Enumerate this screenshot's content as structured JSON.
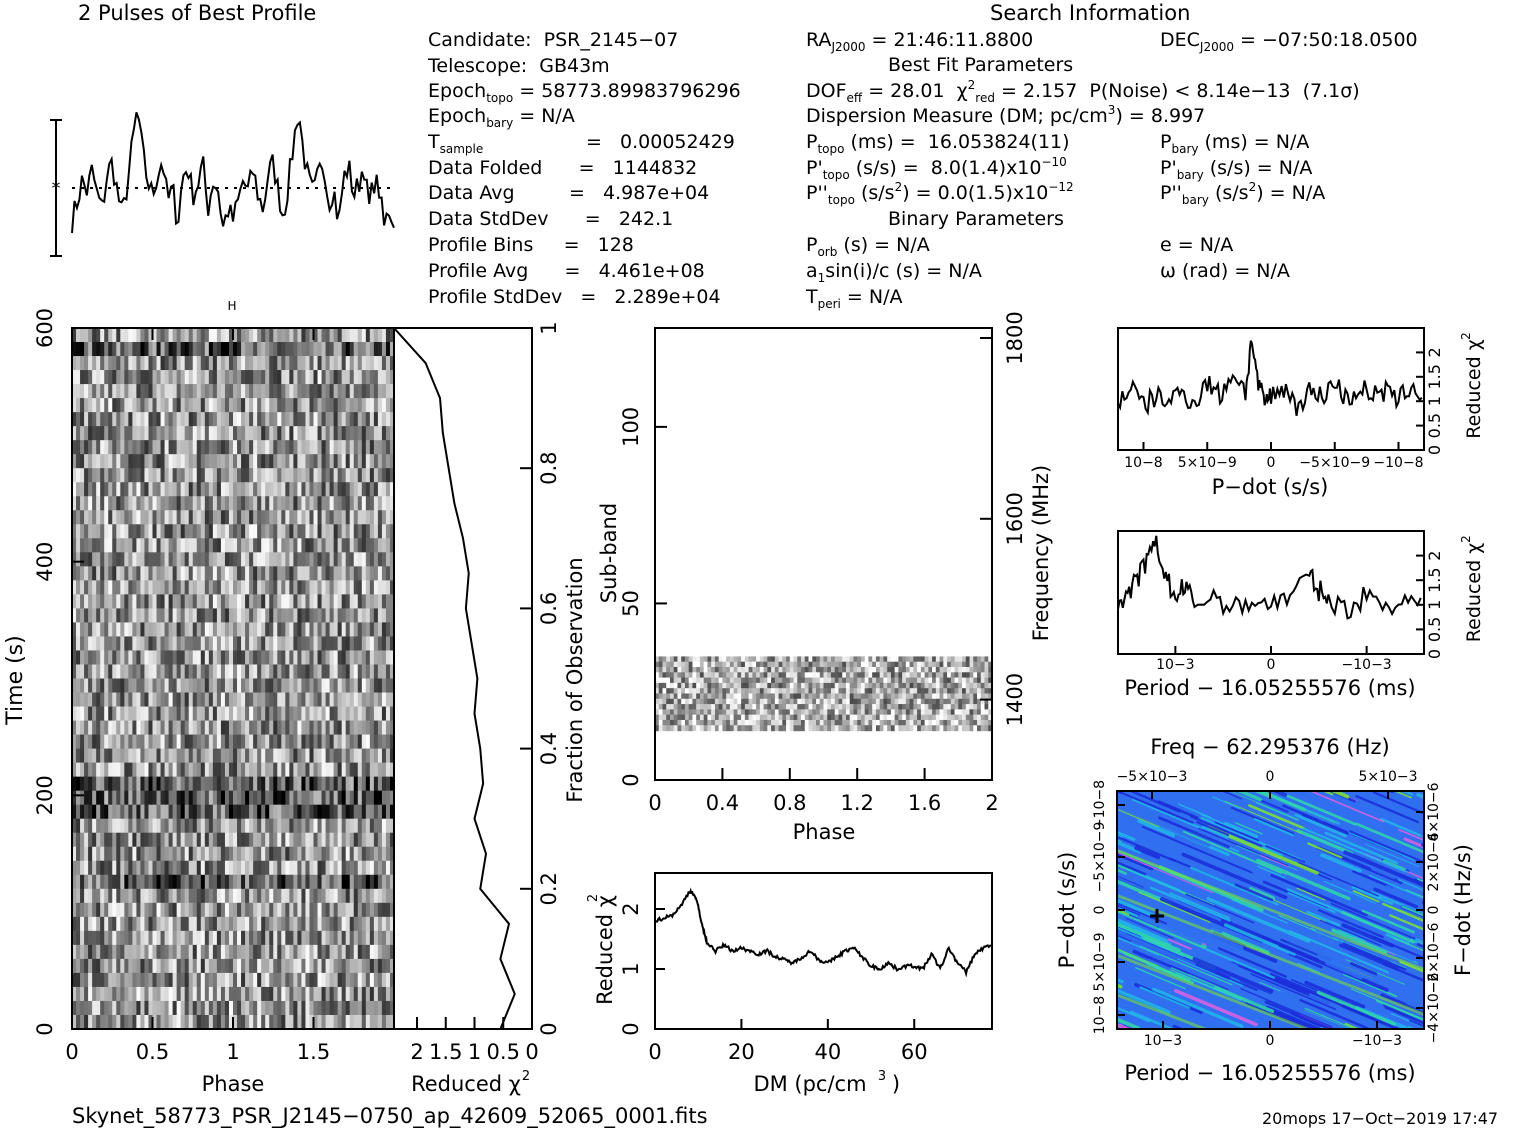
{
  "headers": {
    "profile_title": "2 Pulses of Best Profile",
    "search_info": "Search Information",
    "best_fit": "Best Fit Parameters",
    "binary": "Binary Parameters"
  },
  "candidate_info": {
    "candidate": "Candidate:  PSR_2145−07",
    "telescope": "Telescope:  GB43m",
    "epoch_topo": " = 58773.89983796296",
    "epoch_bary": " = N/A",
    "t_sample": "=   0.00052429",
    "data_folded": "Data Folded      =   1144832",
    "data_avg": "Data Avg         =   4.987e+04",
    "data_stddev": "Data StdDev      =   242.1",
    "profile_bins": "Profile Bins     =   128",
    "profile_avg": "Profile Avg      =   4.461e+08",
    "profile_stddev": "Profile StdDev   =   2.289e+04"
  },
  "search_info": {
    "ra": " = 21:46:11.8800",
    "dec": " = −07:50:18.0500",
    "dof": " = 28.01",
    "chi2": " = 2.157  P(Noise) < 8.14e−13  (7.1σ)",
    "dm": "Dispersion Measure (DM; pc/cm",
    "dm_val": ") = 8.997",
    "p_topo": " (ms) =  16.053824(11)",
    "pd_topo": " (s/s) =  8.0(1.4)x10",
    "pd_topo_exp": "−10",
    "pdd_topo": " (s/s",
    "pdd_topo2": ") = 0.0(1.5)x10",
    "pdd_topo_exp": "−12",
    "p_bary": " (ms) = N/A",
    "pd_bary": " (s/s) = N/A",
    "pdd_bary": ") = N/A",
    "p_orb": " (s) = N/A",
    "asini": "sin(i)/c (s) = N/A",
    "t_peri": " = N/A",
    "e": "e = N/A",
    "omega": "ω (rad) = N/A"
  },
  "footer": {
    "filename": "Skynet_58773_PSR_J2145−0750_ap_42609_52065_0001.fits",
    "stamp": "20mops 17−Oct−2019 17:47"
  },
  "chart_data": [
    {
      "type": "line",
      "name": "profile",
      "title": "2 Pulses of Best Profile",
      "phase": [
        0,
        0.03125,
        0.0625,
        0.09375,
        0.125,
        0.15625,
        0.1875,
        0.21875,
        0.25,
        0.28125,
        0.3125,
        0.34375,
        0.375,
        0.40625,
        0.4375,
        0.46875,
        0.5,
        0.53125,
        0.5625,
        0.59375,
        0.625,
        0.65625,
        0.6875,
        0.71875,
        0.75,
        0.78125,
        0.8125,
        0.84375,
        0.875,
        0.90625,
        0.9375,
        0.96875,
        1.0,
        1.03125,
        1.0625,
        1.09375,
        1.125,
        1.15625,
        1.1875,
        1.21875,
        1.25,
        1.28125,
        1.3125,
        1.34375,
        1.375,
        1.40625,
        1.4375,
        1.46875,
        1.5,
        1.53125,
        1.5625,
        1.59375,
        1.625,
        1.65625,
        1.6875,
        1.71875,
        1.75,
        1.78125,
        1.8125,
        1.84375,
        1.875,
        1.90625,
        1.9375,
        1.96875,
        2.0
      ],
      "level": [
        -0.45,
        -0.2,
        0.1,
        -0.05,
        0.25,
        -0.1,
        -0.3,
        0.2,
        0.35,
        -0.05,
        -0.4,
        0.05,
        0.6,
        1.1,
        0.5,
        0.1,
        -0.1,
        0.2,
        0.4,
        -0.2,
        0.0,
        -0.5,
        0.15,
        0.3,
        -0.1,
        0.05,
        0.35,
        -0.3,
        0.1,
        0.0,
        -0.55,
        -0.3,
        -0.45,
        -0.2,
        0.1,
        -0.05,
        0.25,
        -0.1,
        -0.3,
        0.2,
        0.35,
        -0.05,
        -0.4,
        0.05,
        0.6,
        1.1,
        0.5,
        0.1,
        -0.1,
        0.2,
        0.4,
        -0.2,
        0.0,
        -0.5,
        0.15,
        0.3,
        -0.1,
        0.05,
        0.35,
        -0.3,
        0.1,
        0.0,
        -0.55,
        -0.3,
        -0.45
      ]
    },
    {
      "type": "heatmap",
      "name": "time-phase",
      "xlabel": "Phase",
      "ylabel": "Time (s)",
      "xlim": [
        0,
        2
      ],
      "ylim": [
        0,
        600
      ],
      "xticks": [
        "0",
        "0.5",
        "1",
        "1.5"
      ],
      "yticks": [
        "0",
        "200",
        "400",
        "600"
      ],
      "right_axis_label": "Fraction of Observation",
      "right_ticks": [
        "0",
        "0.2",
        "0.4",
        "0.6",
        "0.8",
        "1"
      ]
    },
    {
      "type": "line",
      "name": "reduced-chi2-vs-time",
      "xlabel": "Reduced χ2",
      "xticks": [
        "2",
        "1.5",
        "1",
        "0.5",
        "0"
      ],
      "xlim": [
        2.4,
        0
      ],
      "fraction": [
        0.0,
        0.05,
        0.1,
        0.15,
        0.2,
        0.25,
        0.3,
        0.35,
        0.4,
        0.45,
        0.5,
        0.55,
        0.6,
        0.65,
        0.7,
        0.75,
        0.8,
        0.85,
        0.9,
        0.95,
        1.0
      ],
      "chi2": [
        0.55,
        0.3,
        0.55,
        0.4,
        0.9,
        0.8,
        1.0,
        0.85,
        0.9,
        1.0,
        0.95,
        1.05,
        1.15,
        1.1,
        1.2,
        1.35,
        1.45,
        1.55,
        1.6,
        1.85,
        2.4
      ]
    },
    {
      "type": "heatmap",
      "name": "subband-phase",
      "xlabel": "Phase",
      "ylabel": "Sub-band",
      "right_axis_label": "Frequency (MHz)",
      "xlim": [
        0,
        2
      ],
      "ylim": [
        0,
        128
      ],
      "xticks": [
        "0",
        "0.4",
        "0.8",
        "1.2",
        "1.6",
        "2"
      ],
      "yticks": [
        "0",
        "50",
        "100"
      ],
      "right_ticks": [
        "1400",
        "1600",
        "1800"
      ],
      "active_subbands": [
        14,
        35
      ]
    },
    {
      "type": "line",
      "name": "dm-curve",
      "xlabel": "DM (pc/cm3)",
      "ylabel": "Reduced χ2",
      "xlim": [
        0,
        78
      ],
      "ylim": [
        0,
        2.6
      ],
      "xticks": [
        "0",
        "20",
        "40",
        "60"
      ],
      "yticks": [
        "0",
        "1",
        "2"
      ],
      "x": [
        0,
        2,
        4,
        6,
        8,
        9,
        10,
        11,
        12,
        14,
        16,
        18,
        20,
        22,
        24,
        26,
        28,
        30,
        32,
        34,
        36,
        38,
        40,
        42,
        44,
        46,
        48,
        50,
        52,
        54,
        56,
        58,
        60,
        62,
        64,
        66,
        68,
        70,
        72,
        74,
        76,
        78
      ],
      "y": [
        1.8,
        1.85,
        1.9,
        2.05,
        2.3,
        2.25,
        2.05,
        1.7,
        1.45,
        1.3,
        1.4,
        1.3,
        1.35,
        1.3,
        1.25,
        1.3,
        1.2,
        1.15,
        1.1,
        1.2,
        1.3,
        1.15,
        1.1,
        1.2,
        1.3,
        1.35,
        1.2,
        1.05,
        1.0,
        1.1,
        1.0,
        1.05,
        1.05,
        1.0,
        1.25,
        1.0,
        1.35,
        1.1,
        0.95,
        1.25,
        1.35,
        1.4
      ]
    },
    {
      "type": "line",
      "name": "pdot-curve",
      "xlabel": "P−dot (s/s)",
      "ylabel": "Reduced χ2",
      "xticks": [
        "10−8",
        "5×10−9",
        "0",
        "−5×10−9",
        "−10−8"
      ],
      "yticks": [
        "0",
        "0.5",
        "1",
        "1.5",
        "2"
      ],
      "xlim": [
        1.2e-08,
        -1.2e-08
      ],
      "ylim": [
        0,
        2.5
      ],
      "x": [
        1.2e-08,
        1.1e-08,
        1e-08,
        9e-09,
        8e-09,
        7e-09,
        6e-09,
        5e-09,
        4e-09,
        3e-09,
        2e-09,
        1.5e-09,
        1e-09,
        5e-10,
        0,
        -1e-09,
        -2e-09,
        -3e-09,
        -4e-09,
        -5e-09,
        -6e-09,
        -7e-09,
        -8e-09,
        -9e-09,
        -1e-08,
        -1.1e-08,
        -1.2e-08
      ],
      "y": [
        1.0,
        1.3,
        0.9,
        1.1,
        1.0,
        1.2,
        0.95,
        1.4,
        1.1,
        1.6,
        1.2,
        2.3,
        1.3,
        1.0,
        1.1,
        1.3,
        0.9,
        1.2,
        1.1,
        1.4,
        1.0,
        1.3,
        1.1,
        1.2,
        1.0,
        1.35,
        1.0
      ]
    },
    {
      "type": "line",
      "name": "period-curve",
      "xlabel": "Period − 16.05255576 (ms)",
      "ylabel": "Reduced χ2",
      "xticks": [
        "10−3",
        "0",
        "−10−3"
      ],
      "yticks": [
        "0",
        "0.5",
        "1",
        "1.5",
        "2"
      ],
      "xlim": [
        0.0016,
        -0.0016
      ],
      "ylim": [
        0,
        2.5
      ],
      "x": [
        0.0016,
        0.0015,
        0.0014,
        0.0013,
        0.0012,
        0.0011,
        0.001,
        0.0009,
        0.0008,
        0.0006,
        0.0004,
        0.0002,
        0,
        -0.0002,
        -0.0004,
        -0.0005,
        -0.0006,
        -0.0008,
        -0.001,
        -0.0012,
        -0.0014,
        -0.0016
      ],
      "y": [
        1.0,
        1.2,
        1.5,
        1.9,
        2.2,
        1.6,
        1.1,
        1.4,
        1.0,
        1.2,
        0.9,
        1.1,
        1.0,
        1.2,
        1.6,
        1.3,
        1.1,
        0.9,
        1.2,
        1.0,
        1.1,
        1.0
      ]
    },
    {
      "type": "heatmap",
      "name": "ppdot-plane",
      "title": "Freq − 62.295376 (Hz)",
      "xlabel": "Period − 16.05255576 (ms)",
      "ylabel": "P−dot (s/s)",
      "right_axis_label": "F−dot (Hz/s)",
      "top_ticks": [
        "−5×10−3",
        "0",
        "5×10−3"
      ],
      "bottom_ticks": [
        "10−3",
        "0",
        "−10−3"
      ],
      "left_ticks": [
        "10−8",
        "5×10−9",
        "0",
        "−5×10−9",
        "−10−8"
      ],
      "right_ticks": [
        "−4×10−6",
        "−2×10−6",
        "0",
        "2×10−6",
        "4×10−6"
      ],
      "colors": [
        "#1a2bd8",
        "#2f6ff0",
        "#22b7e8",
        "#30d8a8",
        "#7ee82a",
        "#c8f020",
        "#e060e0"
      ]
    }
  ]
}
